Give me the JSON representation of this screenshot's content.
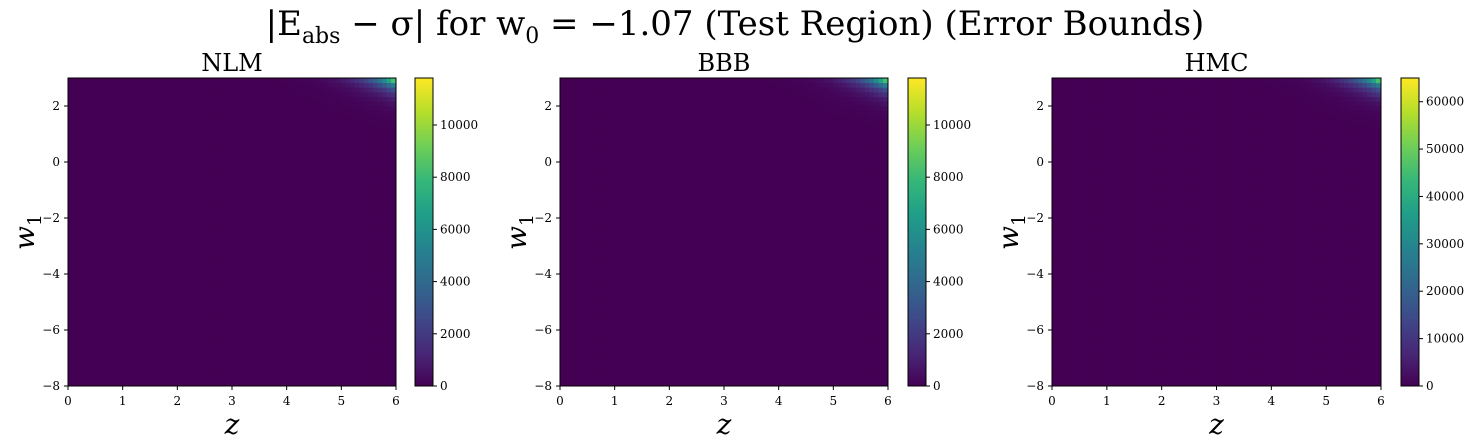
{
  "figure": {
    "suptitle": "|Eabs − σ| for w0 = −1.07 (Test Region) (Error Bounds)",
    "suptitle_parts": {
      "abs_open": "|E",
      "sub1": "abs",
      "mid": " − σ| for w",
      "sub2": "0",
      "tail": " = −1.07 (Test Region) (Error Bounds)"
    },
    "colormap": "viridis"
  },
  "chart_data": [
    {
      "type": "heatmap",
      "title": "NLM",
      "xlabel": "z",
      "ylabel": "w1",
      "xlim": [
        0,
        6
      ],
      "ylim": [
        -8,
        3
      ],
      "xticks": [
        0,
        1,
        2,
        3,
        4,
        5,
        6
      ],
      "yticks": [
        -8,
        -6,
        -4,
        -2,
        0,
        2
      ],
      "colorbar": {
        "range": [
          0,
          11800
        ],
        "ticks": [
          0,
          2000,
          4000,
          6000,
          8000,
          10000
        ]
      },
      "hotspot": {
        "region": "top-right",
        "peak_value": 11800,
        "peak_at": {
          "z": 6,
          "w1": 3
        }
      }
    },
    {
      "type": "heatmap",
      "title": "BBB",
      "xlabel": "z",
      "ylabel": "w1",
      "xlim": [
        0,
        6
      ],
      "ylim": [
        -8,
        3
      ],
      "xticks": [
        0,
        1,
        2,
        3,
        4,
        5,
        6
      ],
      "yticks": [
        -8,
        -6,
        -4,
        -2,
        0,
        2
      ],
      "colorbar": {
        "range": [
          0,
          11800
        ],
        "ticks": [
          0,
          2000,
          4000,
          6000,
          8000,
          10000
        ]
      },
      "hotspot": {
        "region": "top-right",
        "peak_value": 11800,
        "peak_at": {
          "z": 6,
          "w1": 3
        }
      }
    },
    {
      "type": "heatmap",
      "title": "HMC",
      "xlabel": "z",
      "ylabel": "w1",
      "xlim": [
        0,
        6
      ],
      "ylim": [
        -8,
        3
      ],
      "xticks": [
        0,
        1,
        2,
        3,
        4,
        5,
        6
      ],
      "yticks": [
        -8,
        -6,
        -4,
        -2,
        0,
        2
      ],
      "colorbar": {
        "range": [
          0,
          65000
        ],
        "ticks": [
          0,
          10000,
          20000,
          30000,
          40000,
          50000,
          60000
        ]
      },
      "hotspot": {
        "region": "top-right",
        "peak_value": 65000,
        "peak_at": {
          "z": 6,
          "w1": 3
        }
      }
    }
  ]
}
